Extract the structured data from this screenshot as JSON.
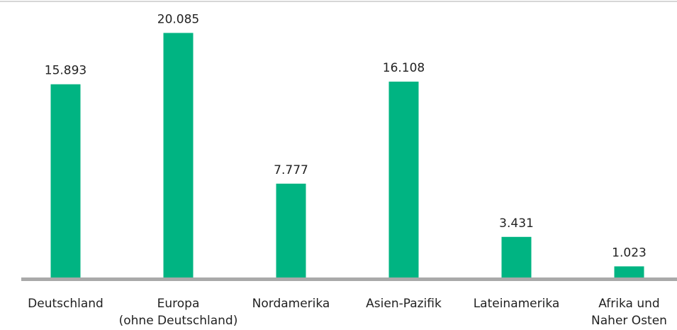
{
  "chart_data": {
    "type": "bar",
    "categories": [
      "Deutschland",
      "Europa\n(ohne Deutschland)",
      "Nordamerika",
      "Asien-Pazifik",
      "Lateinamerika",
      "Afrika und\nNaher Osten"
    ],
    "values": [
      15893,
      20085,
      7777,
      16108,
      3431,
      1023
    ],
    "value_labels": [
      "15.893",
      "20.085",
      "7.777",
      "16.108",
      "3.431",
      "1.023"
    ],
    "color": "#00b482",
    "ylim": [
      0,
      22600
    ]
  }
}
